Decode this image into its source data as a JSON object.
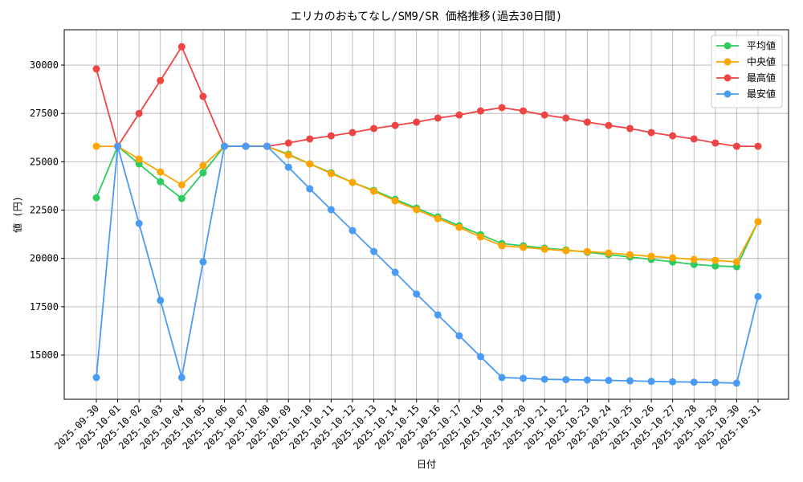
{
  "chart_data": {
    "type": "line",
    "title": "エリカのおもてなし/SM9/SR 価格推移(過去30日間)",
    "x_label": "日付",
    "y_label": "値 (円)",
    "categories": [
      "2025-09-30",
      "2025-10-01",
      "2025-10-02",
      "2025-10-03",
      "2025-10-04",
      "2025-10-05",
      "2025-10-06",
      "2025-10-07",
      "2025-10-08",
      "2025-10-09",
      "2025-10-10",
      "2025-10-11",
      "2025-10-12",
      "2025-10-13",
      "2025-10-14",
      "2025-10-15",
      "2025-10-16",
      "2025-10-17",
      "2025-10-18",
      "2025-10-19",
      "2025-10-20",
      "2025-10-21",
      "2025-10-22",
      "2025-10-23",
      "2025-10-24",
      "2025-10-25",
      "2025-10-26",
      "2025-10-27",
      "2025-10-28",
      "2025-10-29",
      "2025-10-30",
      "2025-10-31"
    ],
    "series": [
      {
        "name": "平均値",
        "color": "#2ecc5f",
        "values": [
          23140,
          25800,
          24890,
          23970,
          23100,
          24430,
          25800,
          25800,
          25800,
          25390,
          24890,
          24430,
          23930,
          23520,
          23060,
          22600,
          22150,
          21690,
          21230,
          20770,
          20650,
          20530,
          20440,
          20320,
          20200,
          20070,
          19950,
          19820,
          19690,
          19610,
          19570,
          21900
        ]
      },
      {
        "name": "中央値",
        "color": "#ffa500",
        "values": [
          25800,
          25800,
          25140,
          24470,
          23810,
          24800,
          25800,
          25800,
          25800,
          25350,
          24890,
          24390,
          23930,
          23480,
          22980,
          22520,
          22060,
          21610,
          21110,
          20650,
          20570,
          20480,
          20400,
          20360,
          20280,
          20190,
          20110,
          20030,
          19950,
          19900,
          19820,
          21900
        ]
      },
      {
        "name": "最高値",
        "color": "#ef4444",
        "values": [
          29800,
          25800,
          27500,
          29200,
          30950,
          28380,
          25800,
          25800,
          25800,
          25970,
          26180,
          26340,
          26510,
          26720,
          26880,
          27050,
          27260,
          27420,
          27630,
          27800,
          27630,
          27420,
          27260,
          27050,
          26880,
          26720,
          26510,
          26340,
          26180,
          25970,
          25800,
          25800
        ]
      },
      {
        "name": "最安値",
        "color": "#4a9bf5",
        "values": [
          13840,
          25800,
          21810,
          17830,
          13840,
          19820,
          25800,
          25800,
          25800,
          24720,
          23600,
          22520,
          21440,
          20360,
          19280,
          18160,
          17080,
          16000,
          14920,
          13840,
          13800,
          13750,
          13730,
          13710,
          13690,
          13670,
          13640,
          13620,
          13600,
          13580,
          13550,
          18030
        ]
      }
    ],
    "ylim": [
      12715,
      31830
    ],
    "yticks": [
      15000,
      17500,
      20000,
      22500,
      25000,
      27500,
      30000
    ],
    "grid": true,
    "legend": "upper right"
  }
}
